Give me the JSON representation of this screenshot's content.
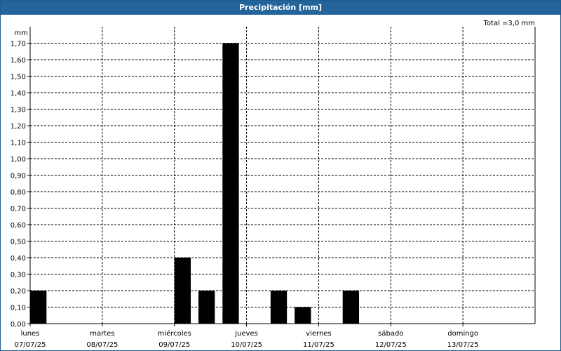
{
  "chart_data": {
    "type": "bar",
    "title": "Precipitación [mm]",
    "ylabel": "mm",
    "total_label": "Total =3,0 mm",
    "ylim": [
      0,
      1.8
    ],
    "y_ticks": [
      "0,00",
      "0,10",
      "0,20",
      "0,30",
      "0,40",
      "0,50",
      "0,60",
      "0,70",
      "0,80",
      "0,90",
      "1,00",
      "1,10",
      "1,20",
      "1,30",
      "1,40",
      "1,50",
      "1,60",
      "1,70"
    ],
    "day_labels": [
      {
        "day": "lunes",
        "date": "07/07/25"
      },
      {
        "day": "martes",
        "date": "08/07/25"
      },
      {
        "day": "miércoles",
        "date": "09/07/25"
      },
      {
        "day": "jueves",
        "date": "10/07/25"
      },
      {
        "day": "viernes",
        "date": "11/07/25"
      },
      {
        "day": "sábado",
        "date": "12/07/25"
      },
      {
        "day": "domingo",
        "date": "13/07/25"
      }
    ],
    "x_unit": "hours since 07/07/25 00:00",
    "bars": [
      {
        "x": 0,
        "value": 0.2
      },
      {
        "x": 48,
        "value": 0.4
      },
      {
        "x": 56,
        "value": 0.2
      },
      {
        "x": 64,
        "value": 1.7
      },
      {
        "x": 80,
        "value": 0.2
      },
      {
        "x": 88,
        "value": 0.1
      },
      {
        "x": 104,
        "value": 0.2
      }
    ],
    "grid": true,
    "bar_color": "#000000"
  }
}
